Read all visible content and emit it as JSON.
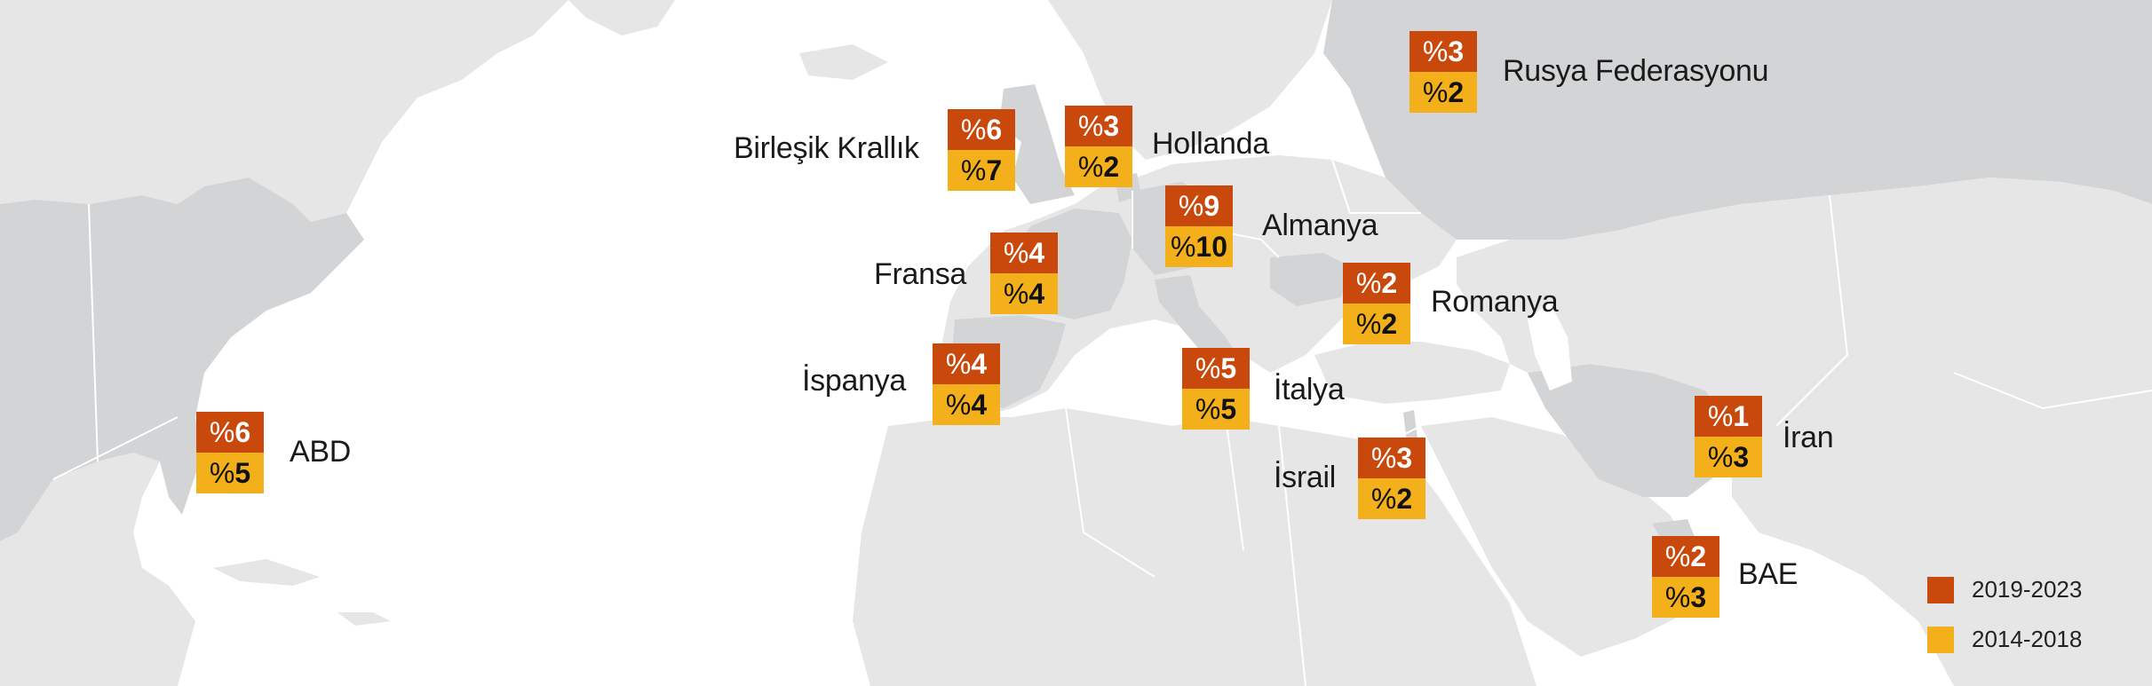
{
  "countries": [
    {
      "key": "usa",
      "name": "ABD",
      "recent": "6",
      "earlier": "5"
    },
    {
      "key": "uk",
      "name": "Birleşik Krallık",
      "recent": "6",
      "earlier": "7"
    },
    {
      "key": "netherlands",
      "name": "Hollanda",
      "recent": "3",
      "earlier": "2"
    },
    {
      "key": "russia",
      "name": "Rusya Federasyonu",
      "recent": "3",
      "earlier": "2"
    },
    {
      "key": "germany",
      "name": "Almanya",
      "recent": "9",
      "earlier": "10"
    },
    {
      "key": "france",
      "name": "Fransa",
      "recent": "4",
      "earlier": "4"
    },
    {
      "key": "romania",
      "name": "Romanya",
      "recent": "2",
      "earlier": "2"
    },
    {
      "key": "spain",
      "name": "İspanya",
      "recent": "4",
      "earlier": "4"
    },
    {
      "key": "italy",
      "name": "İtalya",
      "recent": "5",
      "earlier": "5"
    },
    {
      "key": "israel",
      "name": "İsrail",
      "recent": "3",
      "earlier": "2"
    },
    {
      "key": "iran",
      "name": "İran",
      "recent": "1",
      "earlier": "3"
    },
    {
      "key": "uae",
      "name": "BAE",
      "recent": "2",
      "earlier": "3"
    }
  ],
  "percent_symbol": "%",
  "legend": {
    "recent": {
      "label": "2019-2023",
      "color": "#c9480c"
    },
    "earlier": {
      "label": "2014-2018",
      "color": "#f4b01a"
    }
  },
  "colors": {
    "land": "#e6e6e6",
    "highlight": "#d3d4d5",
    "border": "#ffffff"
  }
}
